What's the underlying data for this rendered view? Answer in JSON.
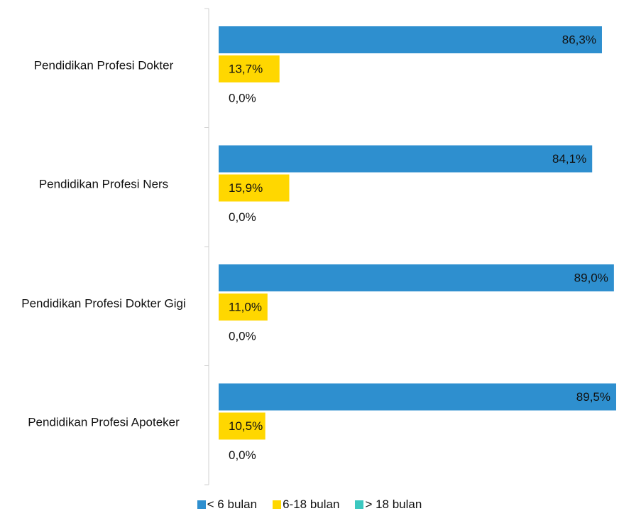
{
  "chart_data": {
    "type": "hbar",
    "categories": [
      "Pendidikan Profesi Dokter",
      "Pendidikan Profesi Ners",
      "Pendidikan Profesi Dokter Gigi",
      "Pendidikan Profesi Apoteker"
    ],
    "series": [
      {
        "name": "< 6 bulan",
        "color": "#2e8fcf",
        "values": [
          86.3,
          84.1,
          89.0,
          89.5
        ],
        "value_labels": [
          "86,3%",
          "84,1%",
          "89,0%",
          "89,5%"
        ]
      },
      {
        "name": "6-18 bulan",
        "color": "#ffd700",
        "values": [
          13.7,
          15.9,
          11.0,
          10.5
        ],
        "value_labels": [
          "13,7%",
          "15,9%",
          "11,0%",
          "10,5%"
        ]
      },
      {
        "name": "> 18 bulan",
        "color": "#3cc8c0",
        "values": [
          0.0,
          0.0,
          0.0,
          0.0
        ],
        "value_labels": [
          "0,0%",
          "0,0%",
          "0,0%",
          "0,0%"
        ]
      }
    ],
    "legend": "bottom"
  }
}
